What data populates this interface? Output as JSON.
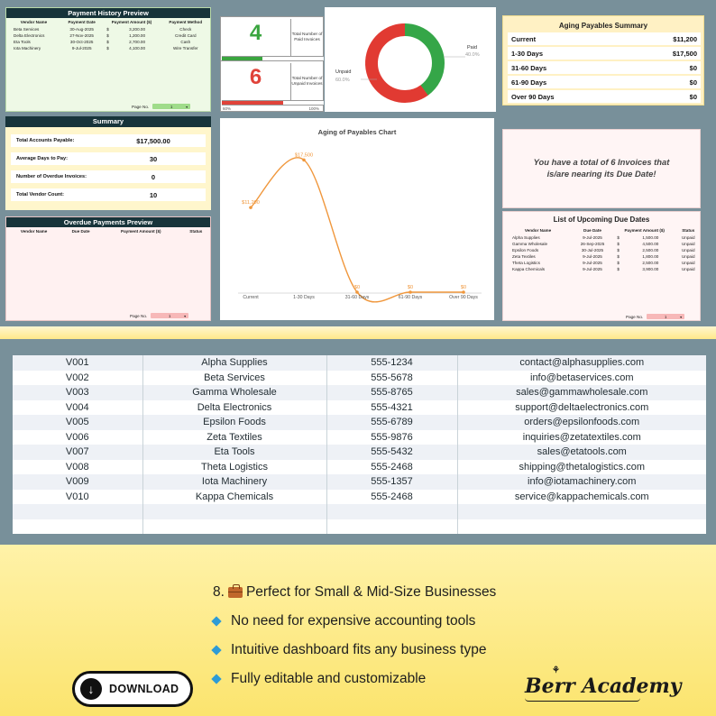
{
  "payment_history": {
    "title": "Payment History Preview",
    "columns": [
      "Vendor Name",
      "Payment Date",
      "Payment Amount ($)",
      "Payment Method"
    ],
    "rows": [
      {
        "vendor": "Beta Services",
        "date": "30-Aug-2025",
        "currency": "$",
        "amount": "3,200.00",
        "method": "Check"
      },
      {
        "vendor": "Delta Electronics",
        "date": "27-Nov-2025",
        "currency": "$",
        "amount": "1,200.00",
        "method": "Credit Card"
      },
      {
        "vendor": "Eta Tools",
        "date": "30-Oct-2025",
        "currency": "$",
        "amount": "2,700.00",
        "method": "Cash"
      },
      {
        "vendor": "Iota Machinery",
        "date": "9-Jul-2025",
        "currency": "$",
        "amount": "4,100.00",
        "method": "Wire Transfer"
      }
    ],
    "page_label": "Page No.",
    "page_value": "1"
  },
  "summary": {
    "title": "Summary",
    "rows": [
      {
        "label": "Total Accounts Payable:",
        "value": "$17,500.00"
      },
      {
        "label": "Average Days to Pay:",
        "value": "30"
      },
      {
        "label": "Number of Overdue Invoices:",
        "value": "0"
      },
      {
        "label": "Total Vendor Count:",
        "value": "10"
      }
    ]
  },
  "overdue": {
    "title": "Overdue Payments  Preview",
    "columns": [
      "Vendor Name",
      "Due Date",
      "Payment Amount ($)",
      "Status"
    ],
    "page_label": "Page No.",
    "page_value": "1"
  },
  "kpi_paid": {
    "value": "4",
    "label": "Total Number of Paid Invoices",
    "progress_fraction": 0.4,
    "start_label": "40%",
    "end_label": "100%",
    "color": "#3aa53f"
  },
  "kpi_unpaid": {
    "value": "6",
    "label": "Total Number of Unpaid Invoices",
    "progress_fraction": 0.6,
    "start_label": "60%",
    "end_label": "100%",
    "color": "#e0433a"
  },
  "donut": {
    "paid_label": "Paid",
    "paid_pct": "40.0%",
    "paid_fraction": 0.4,
    "paid_color": "#35a648",
    "unpaid_label": "Unpaid",
    "unpaid_pct": "60.0%",
    "unpaid_fraction": 0.6,
    "unpaid_color": "#e13a32"
  },
  "aging_summary": {
    "title": "Aging Payables Summary",
    "rows": [
      {
        "label": "Current",
        "value": "$11,200"
      },
      {
        "label": "1-30 Days",
        "value": "$17,500"
      },
      {
        "label": "31-60 Days",
        "value": "$0"
      },
      {
        "label": "61-90 Days",
        "value": "$0"
      },
      {
        "label": "Over 90 Days",
        "value": "$0"
      }
    ]
  },
  "chart_data": {
    "type": "line",
    "title": "Aging of Payables Chart",
    "categories": [
      "Current",
      "1-30 Days",
      "31-60 Days",
      "61-90 Days",
      "Over 90 Days"
    ],
    "series": [
      {
        "values": [
          11200,
          17500,
          0,
          0,
          0
        ],
        "data_labels": [
          "$11,200",
          "$17,500",
          "$0",
          "$0",
          "$0"
        ],
        "color": "#f0973c"
      }
    ],
    "ylim": [
      0,
      18500
    ],
    "grid": false,
    "smooth": true
  },
  "note": {
    "message": "You have a total of 6 Invoices that is/are nearing its Due Date!"
  },
  "upcoming": {
    "title": "List of Upcoming Due Dates",
    "columns": [
      "Vendor Name",
      "Due Date",
      "Payment Amount ($)",
      "Status"
    ],
    "rows": [
      {
        "vendor": "Alpha Supplies",
        "date": "9-Jul-2025",
        "currency": "$",
        "amount": "1,500.00",
        "status": "Unpaid"
      },
      {
        "vendor": "Gamma Wholesale",
        "date": "26-Sep-2025",
        "currency": "$",
        "amount": "4,500.00",
        "status": "Unpaid"
      },
      {
        "vendor": "Epsilon Foods",
        "date": "30-Jul-2025",
        "currency": "$",
        "amount": "2,500.00",
        "status": "Unpaid"
      },
      {
        "vendor": "Zeta Textiles",
        "date": "9-Jul-2025",
        "currency": "$",
        "amount": "1,800.00",
        "status": "Unpaid"
      },
      {
        "vendor": "Theta Logistics",
        "date": "9-Jul-2025",
        "currency": "$",
        "amount": "2,500.00",
        "status": "Unpaid"
      },
      {
        "vendor": "Kappa Chemicals",
        "date": "9-Jul-2025",
        "currency": "$",
        "amount": "3,900.00",
        "status": "Unpaid"
      }
    ],
    "page_label": "Page No.",
    "page_value": "1"
  },
  "vendors": [
    {
      "id": "V001",
      "name": "Alpha Supplies",
      "phone": "555-1234",
      "email": "contact@alphasupplies.com"
    },
    {
      "id": "V002",
      "name": "Beta Services",
      "phone": "555-5678",
      "email": "info@betaservices.com"
    },
    {
      "id": "V003",
      "name": "Gamma Wholesale",
      "phone": "555-8765",
      "email": "sales@gammawholesale.com"
    },
    {
      "id": "V004",
      "name": "Delta Electronics",
      "phone": "555-4321",
      "email": "support@deltaelectronics.com"
    },
    {
      "id": "V005",
      "name": "Epsilon Foods",
      "phone": "555-6789",
      "email": "orders@epsilonfoods.com"
    },
    {
      "id": "V006",
      "name": "Zeta Textiles",
      "phone": "555-9876",
      "email": "inquiries@zetatextiles.com"
    },
    {
      "id": "V007",
      "name": "Eta Tools",
      "phone": "555-5432",
      "email": "sales@etatools.com"
    },
    {
      "id": "V008",
      "name": "Theta Logistics",
      "phone": "555-2468",
      "email": "shipping@thetalogistics.com"
    },
    {
      "id": "V009",
      "name": "Iota Machinery",
      "phone": "555-1357",
      "email": "info@iotamachinery.com"
    },
    {
      "id": "V010",
      "name": "Kappa Chemicals",
      "phone": "555-2468",
      "email": "service@kappachemicals.com"
    }
  ],
  "features": {
    "heading_prefix": "8.",
    "heading_icon": "briefcase-icon",
    "heading_text": "Perfect for Small & Mid-Size Businesses",
    "bullet_icon": "blue-diamond-icon",
    "bullet_color": "#2d9bd6",
    "bullets": [
      "No need for expensive accounting tools",
      "Intuitive dashboard fits any business type",
      "Fully editable and customizable"
    ]
  },
  "download_button": {
    "label": "DOWNLOAD",
    "icon": "download-arrow-icon"
  },
  "brand": {
    "name": "Berr Academy",
    "icon": "sprout-icon"
  }
}
